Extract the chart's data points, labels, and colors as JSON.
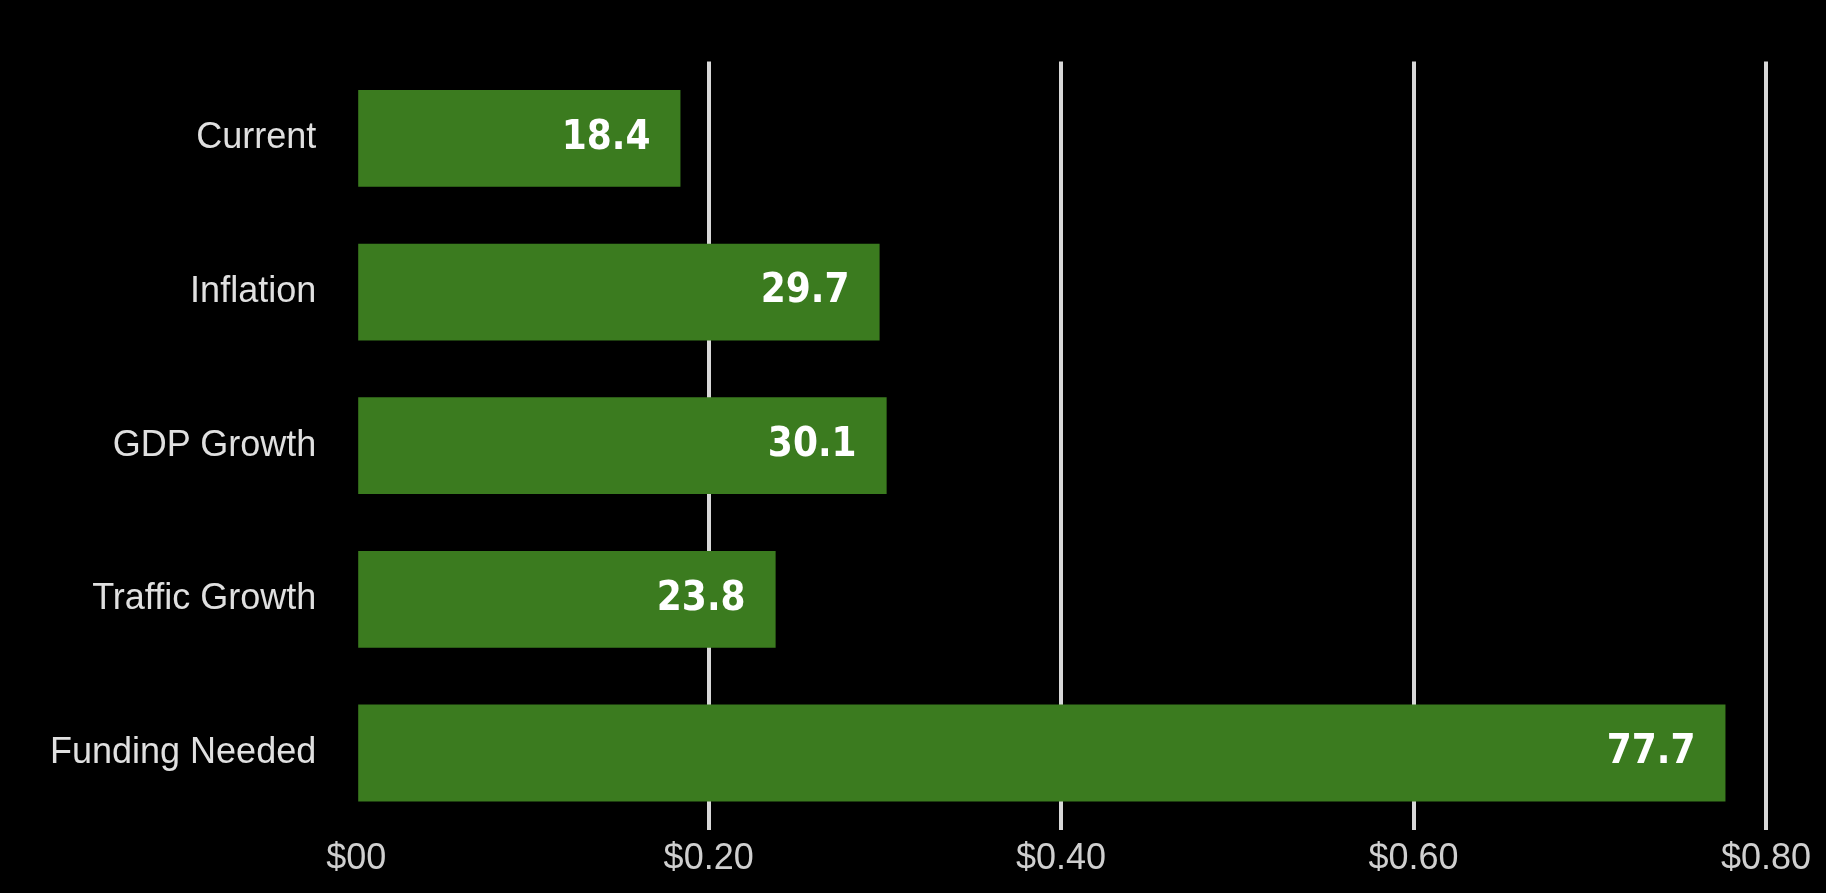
{
  "chart_data": {
    "type": "bar",
    "orientation": "horizontal",
    "categories": [
      "Current",
      "Inflation",
      "GDP Growth",
      "Traffic Growth",
      "Funding Needed"
    ],
    "values": [
      0.184,
      0.297,
      0.301,
      0.238,
      0.777
    ],
    "annotations": [
      {
        "text": "18.4",
        "x": 0.184,
        "y": "Current"
      },
      {
        "text": "29.7",
        "x": 0.297,
        "y": "Inflation"
      },
      {
        "text": "30.1",
        "x": 0.301,
        "y": "GDP Growth"
      },
      {
        "text": "23.8",
        "x": 0.238,
        "y": "Traffic Growth"
      },
      {
        "text": "77.7",
        "x": 0.777,
        "y": "Funding Needed"
      }
    ],
    "color": "#3b7b1f",
    "xlim": [
      0,
      0.8
    ],
    "xticks": [
      {
        "value": 0,
        "label": "$00"
      },
      {
        "value": 0.2,
        "label": "$0.20"
      },
      {
        "value": 0.4,
        "label": "$0.40"
      },
      {
        "value": 0.6,
        "label": "$0.60"
      },
      {
        "value": 0.8,
        "label": "$0.80"
      }
    ],
    "grid": "x",
    "legend": false
  }
}
